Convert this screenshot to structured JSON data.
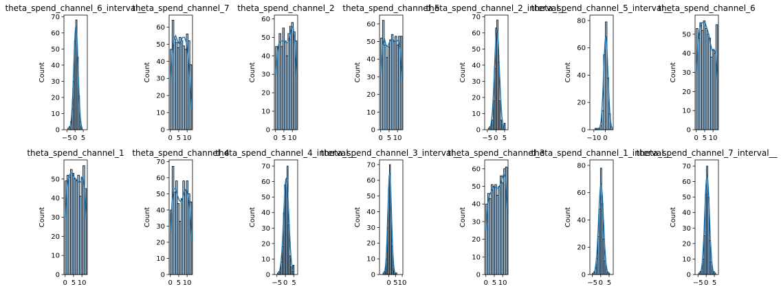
{
  "style": {
    "bar_fill": "#9ec3e1",
    "bar_edge": "#000000",
    "kde_color": "#1f77b4"
  },
  "chart_data": [
    {
      "type": "histogram",
      "title": "theta_spend_channel_6_interval__",
      "ylabel": "Count",
      "xlim": [
        -6.8,
        7.5
      ],
      "ylim": [
        0,
        71
      ],
      "xticks": [
        -5,
        0,
        5
      ],
      "yticks": [
        0,
        10,
        20,
        30,
        40,
        50,
        60,
        70
      ],
      "bin_edges": [
        -4.4,
        -3.6,
        -2.8,
        -2.0,
        -1.2,
        -0.4,
        0.4,
        1.2,
        2.0,
        2.8,
        3.6,
        4.4
      ],
      "counts": [
        1,
        2,
        5,
        13,
        30,
        55,
        68,
        45,
        21,
        5,
        1
      ],
      "kde_peak": 64
    },
    {
      "type": "histogram",
      "title": "theta_spend_channel_7",
      "ylabel": "Count",
      "xlim": [
        -0.7,
        13.2
      ],
      "ylim": [
        0,
        67
      ],
      "xticks": [
        0,
        5,
        10
      ],
      "yticks": [
        0,
        10,
        20,
        30,
        40,
        50,
        60
      ],
      "bin_edges": [
        0,
        1.06,
        2.12,
        3.18,
        4.24,
        5.3,
        6.36,
        7.42,
        8.48,
        9.54,
        10.6,
        11.66,
        12.72
      ],
      "counts": [
        47,
        64,
        53,
        51,
        48,
        54,
        52,
        49,
        47,
        56,
        52,
        38
      ],
      "kde_y": [
        28,
        44,
        53,
        55,
        52,
        50,
        52,
        54,
        54,
        51,
        43,
        30,
        12
      ]
    },
    {
      "type": "histogram",
      "title": "theta_spend_channel_2",
      "ylabel": "Count",
      "xlim": [
        -0.7,
        13.2
      ],
      "ylim": [
        0,
        62
      ],
      "xticks": [
        0,
        5,
        10
      ],
      "yticks": [
        0,
        10,
        20,
        30,
        40,
        50,
        60
      ],
      "bin_edges": [
        0,
        1.06,
        2.12,
        3.18,
        4.24,
        5.3,
        6.36,
        7.42,
        8.48,
        9.54,
        10.6,
        11.66,
        12.72
      ],
      "counts": [
        45,
        45,
        52,
        45,
        55,
        48,
        40,
        52,
        56,
        58,
        53,
        48
      ],
      "kde_y": [
        30,
        42,
        47,
        48,
        48,
        48,
        47,
        47,
        51,
        56,
        55,
        45,
        28
      ]
    },
    {
      "type": "histogram",
      "title": "theta_spend_channel_5",
      "ylabel": "Count",
      "xlim": [
        -0.7,
        13.2
      ],
      "ylim": [
        0,
        65
      ],
      "xticks": [
        0,
        5,
        10
      ],
      "yticks": [
        0,
        10,
        20,
        30,
        40,
        50,
        60
      ],
      "bin_edges": [
        0,
        1.06,
        2.12,
        3.18,
        4.24,
        5.3,
        6.36,
        7.42,
        8.48,
        9.54,
        10.6,
        11.66,
        12.72
      ],
      "counts": [
        52,
        62,
        48,
        41,
        47,
        51,
        54,
        50,
        53,
        48,
        53,
        53
      ],
      "kde_y": [
        32,
        47,
        52,
        48,
        47,
        50,
        51,
        51,
        50,
        50,
        51,
        45,
        28
      ]
    },
    {
      "type": "histogram",
      "title": "theta_spend_channel_2_interval__",
      "ylabel": "Count",
      "xlim": [
        -6.5,
        7.0
      ],
      "ylim": [
        0,
        71
      ],
      "xticks": [
        -5,
        0,
        5
      ],
      "yticks": [
        0,
        10,
        20,
        30,
        40,
        50,
        60,
        70
      ],
      "bin_edges": [
        -4.4,
        -3.7,
        -3.0,
        -2.3,
        -1.6,
        -0.9,
        -0.2,
        0.5,
        1.2,
        1.9,
        2.6,
        3.3,
        4.0,
        4.7,
        5.4
      ],
      "counts": [
        1,
        2,
        3,
        6,
        18,
        38,
        63,
        68,
        42,
        18,
        6,
        3,
        2,
        4
      ],
      "kde_peak": 62
    },
    {
      "type": "histogram",
      "title": "theta_spend_channel_5_interval__",
      "ylabel": "Count",
      "xlim": [
        -13.5,
        7.0
      ],
      "ylim": [
        0,
        84
      ],
      "xticks": [
        -10,
        0
      ],
      "yticks": [
        0,
        20,
        40,
        60,
        80
      ],
      "bin_edges": [
        -9.0,
        -7.5,
        -6.0,
        -4.5,
        -3.0,
        -1.5,
        0,
        1.5,
        3.0,
        4.5,
        6.0
      ],
      "counts": [
        1,
        1,
        1,
        3,
        14,
        55,
        79,
        38,
        12,
        2
      ],
      "kde_peak": 68
    },
    {
      "type": "histogram",
      "title": "theta_spend_channel_6",
      "ylabel": "Count",
      "xlim": [
        -0.7,
        13.2
      ],
      "ylim": [
        0,
        60
      ],
      "xticks": [
        0,
        5,
        10
      ],
      "yticks": [
        0,
        10,
        20,
        30,
        40,
        50
      ],
      "bin_edges": [
        0,
        1.06,
        2.12,
        3.18,
        4.24,
        5.3,
        6.36,
        7.42,
        8.48,
        9.54,
        10.6,
        11.66,
        12.72
      ],
      "counts": [
        53,
        48,
        56,
        52,
        57,
        53,
        50,
        48,
        38,
        42,
        40,
        55
      ],
      "kde_y": [
        30,
        46,
        53,
        56,
        56,
        56,
        53,
        50,
        45,
        41,
        42,
        40,
        25
      ]
    },
    {
      "type": "histogram",
      "title": "theta_spend_channel_1",
      "ylabel": "Count",
      "xlim": [
        -0.7,
        13.2
      ],
      "ylim": [
        0,
        60
      ],
      "xticks": [
        0,
        5,
        10
      ],
      "yticks": [
        0,
        10,
        20,
        30,
        40,
        50
      ],
      "bin_edges": [
        0,
        1.06,
        2.12,
        3.18,
        4.24,
        5.3,
        6.36,
        7.42,
        8.48,
        9.54,
        10.6,
        11.66,
        12.72
      ],
      "counts": [
        49,
        52,
        51,
        55,
        53,
        50,
        49,
        52,
        41,
        51,
        57,
        45
      ],
      "kde_y": [
        30,
        46,
        51,
        53,
        53,
        51,
        50,
        49,
        48,
        49,
        51,
        45,
        28
      ]
    },
    {
      "type": "histogram",
      "title": "theta_spend_channel_4",
      "ylabel": "Count",
      "xlim": [
        -0.7,
        13.2
      ],
      "ylim": [
        0,
        71
      ],
      "xticks": [
        0,
        5,
        10
      ],
      "yticks": [
        0,
        10,
        20,
        30,
        40,
        50,
        60,
        70
      ],
      "bin_edges": [
        0,
        1.06,
        2.12,
        3.18,
        4.24,
        5.3,
        6.36,
        7.42,
        8.48,
        9.54,
        10.6,
        11.66,
        12.72
      ],
      "counts": [
        40,
        67,
        51,
        58,
        44,
        33,
        47,
        58,
        52,
        58,
        50,
        45
      ],
      "kde_y": [
        25,
        45,
        53,
        53,
        49,
        46,
        45,
        48,
        52,
        53,
        49,
        40,
        22
      ]
    },
    {
      "type": "histogram",
      "title": "theta_spend_channel_4_interval__",
      "ylabel": "Count",
      "xlim": [
        -6.5,
        7.2
      ],
      "ylim": [
        0,
        74
      ],
      "xticks": [
        -5,
        0,
        5
      ],
      "yticks": [
        0,
        10,
        20,
        30,
        40,
        50,
        60,
        70
      ],
      "bin_edges": [
        -4.7,
        -4.0,
        -3.3,
        -2.6,
        -1.9,
        -1.2,
        -0.5,
        0.2,
        0.9,
        1.6,
        2.3,
        3.0,
        3.7,
        4.4,
        5.1
      ],
      "counts": [
        1,
        2,
        4,
        8,
        18,
        40,
        58,
        60,
        70,
        32,
        12,
        5,
        2,
        6
      ],
      "kde_peak": 62
    },
    {
      "type": "histogram",
      "title": "theta_spend_channel_3_interval__",
      "ylabel": "Count",
      "xlim": [
        -7.0,
        10.5
      ],
      "ylim": [
        0,
        73
      ],
      "xticks": [
        0,
        5,
        10
      ],
      "yticks": [
        0,
        10,
        20,
        30,
        40,
        50,
        60,
        70
      ],
      "bin_edges": [
        -4.4,
        -3.6,
        -2.8,
        -2.0,
        -1.2,
        -0.4,
        0.4,
        1.2,
        2.0,
        2.8,
        3.6,
        4.4,
        5.2,
        6.0
      ],
      "counts": [
        1,
        2,
        4,
        10,
        30,
        55,
        70,
        42,
        18,
        6,
        2,
        1,
        1
      ],
      "kde_peak": 64
    },
    {
      "type": "histogram",
      "title": "theta_spend_channel_3",
      "ylabel": "Count",
      "xlim": [
        -0.7,
        13.2
      ],
      "ylim": [
        0,
        65
      ],
      "xticks": [
        0,
        5,
        10
      ],
      "yticks": [
        0,
        10,
        20,
        30,
        40,
        50,
        60
      ],
      "bin_edges": [
        0,
        1.06,
        2.12,
        3.18,
        4.24,
        5.3,
        6.36,
        7.42,
        8.48,
        9.54,
        10.6,
        11.66,
        12.72
      ],
      "counts": [
        40,
        46,
        43,
        51,
        50,
        51,
        45,
        50,
        56,
        52,
        60,
        61
      ],
      "kde_y": [
        25,
        40,
        45,
        47,
        49,
        50,
        49,
        49,
        51,
        54,
        57,
        55,
        35
      ]
    },
    {
      "type": "histogram",
      "title": "theta_spend_channel_1_interval__",
      "ylabel": "Count",
      "xlim": [
        -6.5,
        7.5
      ],
      "ylim": [
        0,
        84
      ],
      "xticks": [
        -5,
        0,
        5
      ],
      "yticks": [
        0,
        20,
        40,
        60,
        80
      ],
      "bin_edges": [
        -5.0,
        -4.2,
        -3.4,
        -2.6,
        -1.8,
        -1.0,
        -0.2,
        0.6,
        1.4,
        2.2,
        3.0,
        3.8,
        4.6,
        5.4
      ],
      "counts": [
        1,
        2,
        5,
        12,
        28,
        48,
        78,
        52,
        26,
        10,
        4,
        2,
        1
      ],
      "kde_peak": 66
    },
    {
      "type": "histogram",
      "title": "theta_spend_channel_7_interval__",
      "ylabel": "Count",
      "xlim": [
        -6.8,
        7.5
      ],
      "ylim": [
        0,
        74
      ],
      "xticks": [
        -5,
        0,
        5
      ],
      "yticks": [
        0,
        10,
        20,
        30,
        40,
        50,
        60,
        70
      ],
      "bin_edges": [
        -4.6,
        -3.8,
        -3.0,
        -2.2,
        -1.4,
        -0.6,
        0.2,
        1.0,
        1.8,
        2.6,
        3.4,
        4.2,
        5.0,
        5.8
      ],
      "counts": [
        1,
        2,
        4,
        10,
        25,
        52,
        70,
        50,
        22,
        8,
        3,
        2,
        1
      ],
      "kde_peak": 64
    }
  ]
}
